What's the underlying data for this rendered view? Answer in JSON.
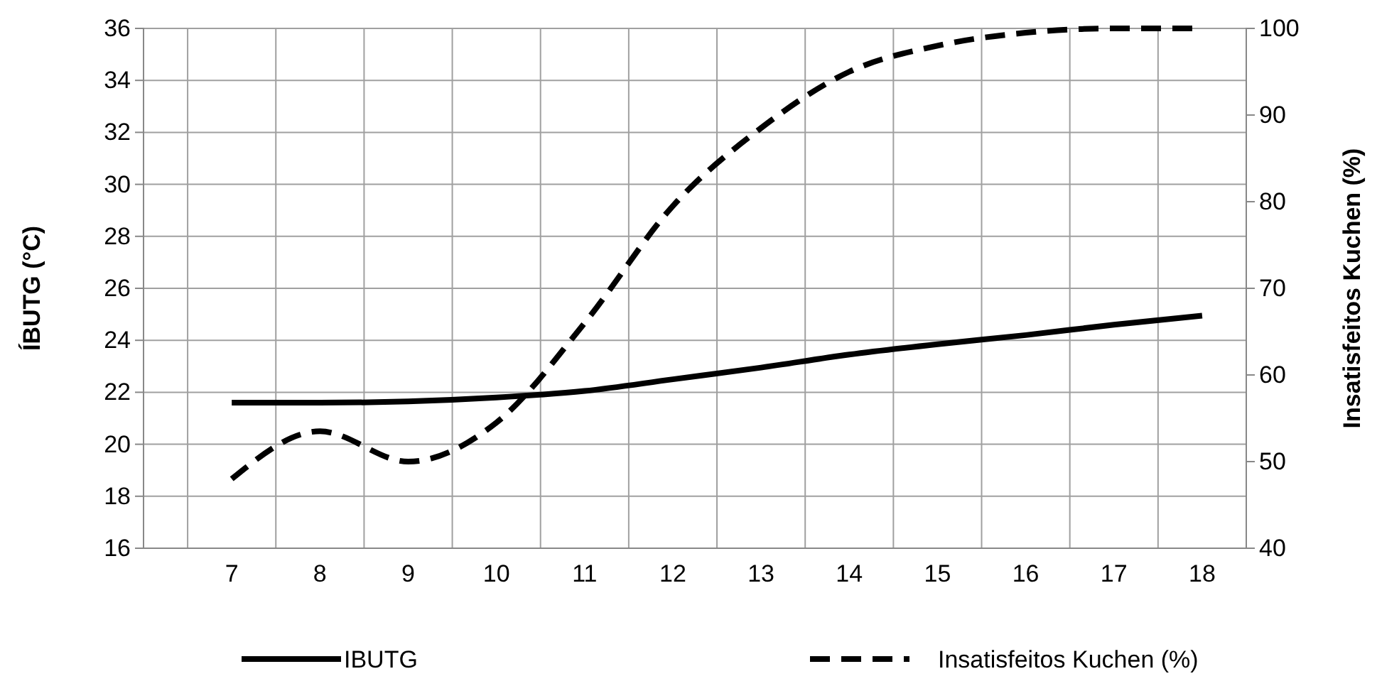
{
  "chart_data": {
    "type": "line",
    "categories": [
      "7",
      "8",
      "9",
      "10",
      "11",
      "12",
      "13",
      "14",
      "15",
      "16",
      "17",
      "18"
    ],
    "ylabel": "ÍBUTG (°C)",
    "y2label": "Insatisfeitos Kuchen (%)",
    "ylim": [
      16,
      36
    ],
    "yticks": [
      16,
      18,
      20,
      22,
      24,
      26,
      28,
      30,
      32,
      34,
      36
    ],
    "y2lim": [
      40,
      100
    ],
    "y2ticks": [
      40,
      50,
      60,
      70,
      80,
      90,
      100
    ],
    "grid": true,
    "legend": "bottom",
    "marker": "none",
    "series": [
      {
        "name": "IBUTG",
        "color": "#000000",
        "line_style": "solid",
        "values": [
          21.6,
          21.6,
          21.65,
          21.8,
          22.05,
          22.5,
          22.95,
          23.45,
          23.85,
          24.2,
          24.6,
          24.95
        ]
      },
      {
        "name": "Insatisfeitos Kuchen (%)",
        "color": "#000000",
        "line_style": "dashed",
        "axis": "y2",
        "values": [
          48,
          53.5,
          50,
          54.5,
          66,
          79.5,
          88.5,
          95,
          98,
          99.5,
          100,
          100
        ]
      }
    ]
  }
}
